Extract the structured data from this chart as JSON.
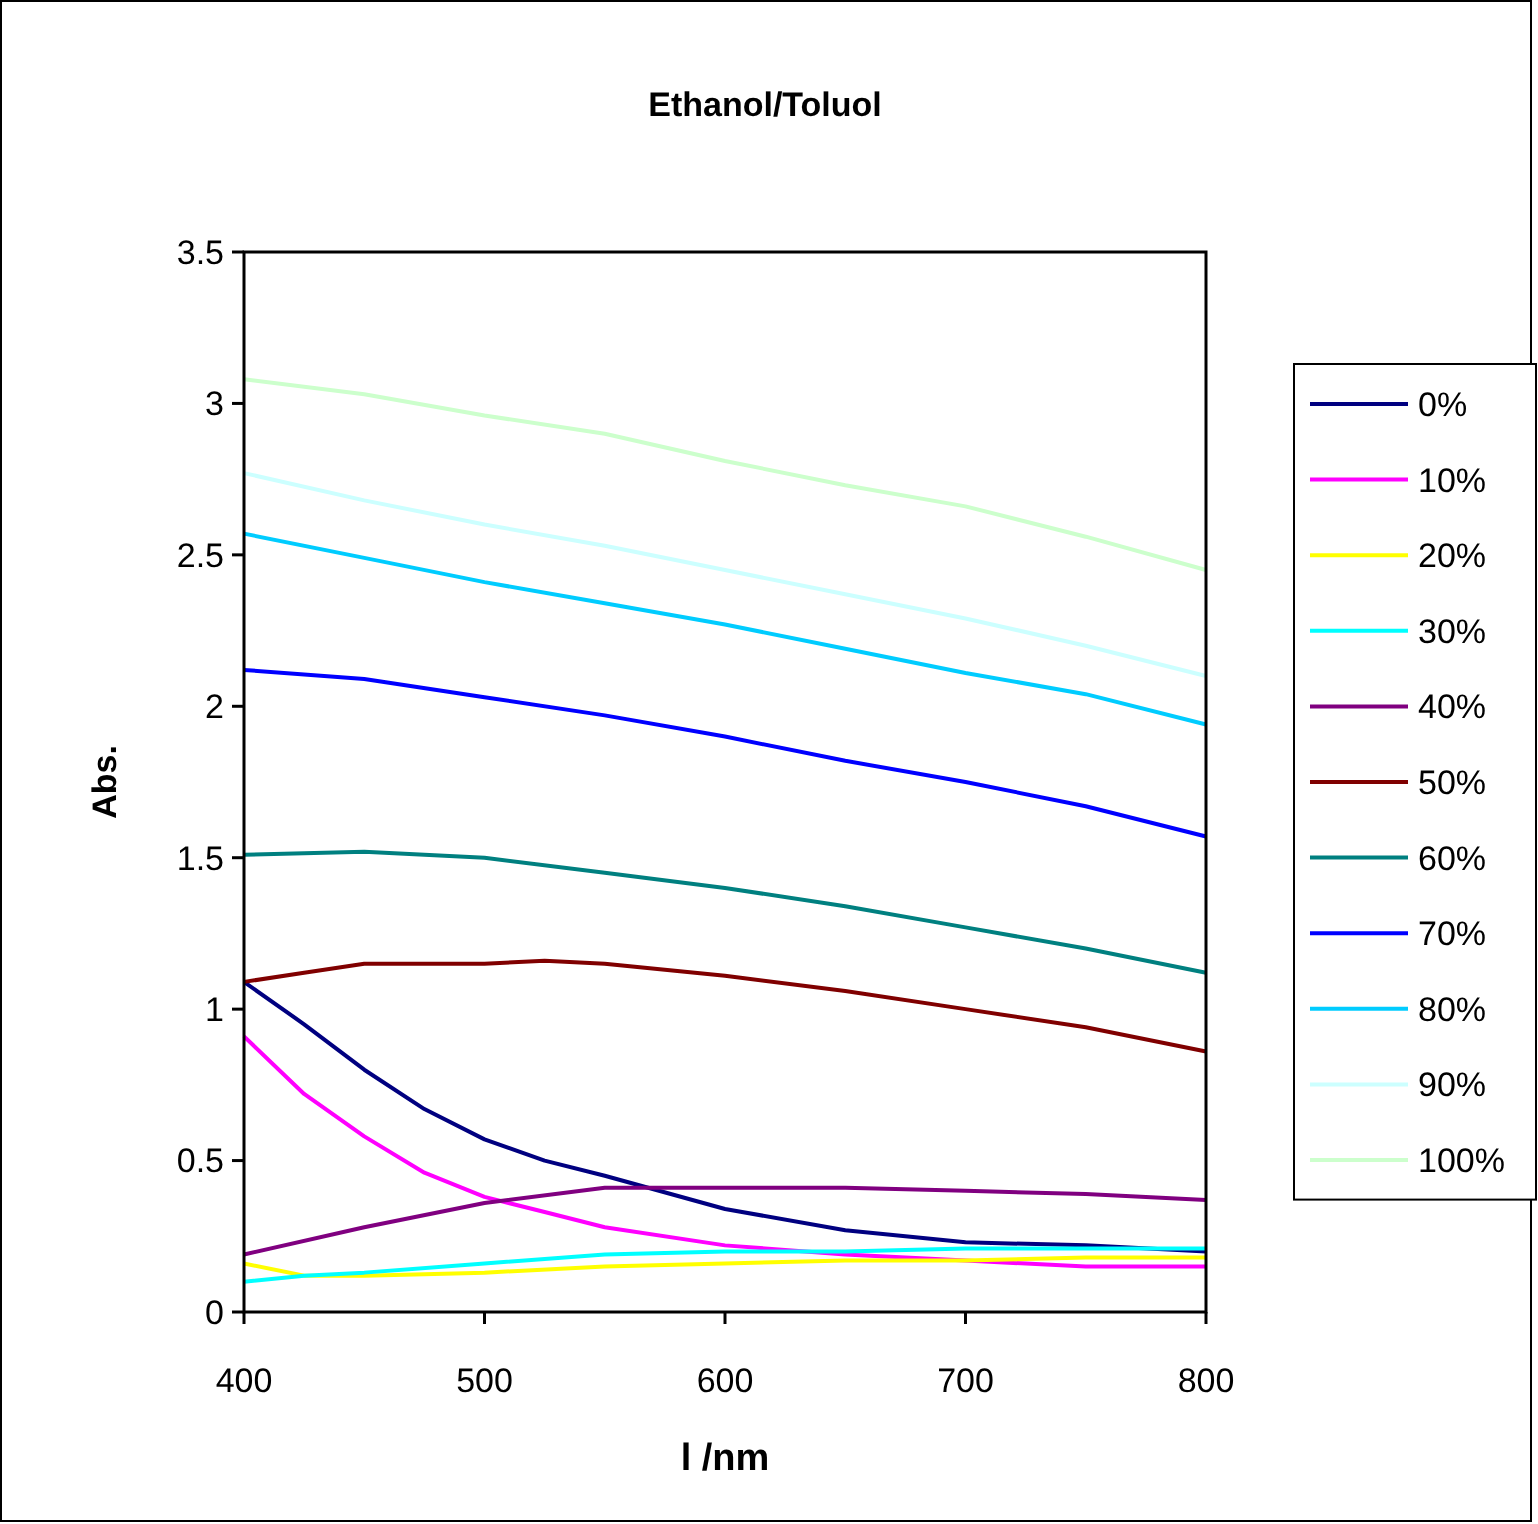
{
  "chart_data": {
    "type": "line",
    "title": "Ethanol/Toluol",
    "xlabel": "l /nm",
    "ylabel": "Abs.",
    "xlim": [
      400,
      800
    ],
    "xticks": [
      400,
      500,
      600,
      700,
      800
    ],
    "ylim": [
      0,
      3.5
    ],
    "yticks": [
      0,
      0.5,
      1,
      1.5,
      2,
      2.5,
      3,
      3.5
    ],
    "grid": false,
    "legend": "right",
    "marker": "none",
    "line_style": "solid",
    "series": [
      {
        "name": "0%",
        "color": "#000080",
        "x": [
          400,
          425,
          450,
          475,
          500,
          525,
          550,
          600,
          650,
          700,
          750,
          800
        ],
        "values": [
          1.09,
          0.95,
          0.8,
          0.67,
          0.57,
          0.5,
          0.45,
          0.34,
          0.27,
          0.23,
          0.22,
          0.2
        ]
      },
      {
        "name": "10%",
        "color": "#ff00ff",
        "x": [
          400,
          425,
          450,
          475,
          500,
          525,
          550,
          600,
          650,
          700,
          750,
          800
        ],
        "values": [
          0.91,
          0.72,
          0.58,
          0.46,
          0.38,
          0.33,
          0.28,
          0.22,
          0.19,
          0.17,
          0.15,
          0.15
        ]
      },
      {
        "name": "20%",
        "color": "#ffff00",
        "x": [
          400,
          425,
          450,
          500,
          550,
          600,
          650,
          700,
          750,
          800
        ],
        "values": [
          0.16,
          0.12,
          0.12,
          0.13,
          0.15,
          0.16,
          0.17,
          0.17,
          0.18,
          0.18
        ]
      },
      {
        "name": "30%",
        "color": "#00ffff",
        "x": [
          400,
          425,
          450,
          500,
          550,
          600,
          650,
          700,
          750,
          800
        ],
        "values": [
          0.1,
          0.12,
          0.13,
          0.16,
          0.19,
          0.2,
          0.2,
          0.21,
          0.21,
          0.21
        ]
      },
      {
        "name": "40%",
        "color": "#800080",
        "x": [
          400,
          450,
          500,
          550,
          600,
          650,
          700,
          750,
          800
        ],
        "values": [
          0.19,
          0.28,
          0.36,
          0.41,
          0.41,
          0.41,
          0.4,
          0.39,
          0.37
        ]
      },
      {
        "name": "50%",
        "color": "#800000",
        "x": [
          400,
          425,
          450,
          500,
          525,
          550,
          600,
          650,
          700,
          750,
          800
        ],
        "values": [
          1.09,
          1.12,
          1.15,
          1.15,
          1.16,
          1.15,
          1.11,
          1.06,
          1.0,
          0.94,
          0.86
        ]
      },
      {
        "name": "60%",
        "color": "#008080",
        "x": [
          400,
          450,
          500,
          550,
          600,
          650,
          700,
          750,
          800
        ],
        "values": [
          1.51,
          1.52,
          1.5,
          1.45,
          1.4,
          1.34,
          1.27,
          1.2,
          1.12
        ]
      },
      {
        "name": "70%",
        "color": "#0000ff",
        "x": [
          400,
          450,
          500,
          550,
          600,
          650,
          700,
          750,
          800
        ],
        "values": [
          2.12,
          2.09,
          2.03,
          1.97,
          1.9,
          1.82,
          1.75,
          1.67,
          1.57
        ]
      },
      {
        "name": "80%",
        "color": "#00ccff",
        "x": [
          400,
          450,
          500,
          550,
          600,
          650,
          700,
          750,
          800
        ],
        "values": [
          2.57,
          2.49,
          2.41,
          2.34,
          2.27,
          2.19,
          2.11,
          2.04,
          1.94
        ]
      },
      {
        "name": "90%",
        "color": "#ccffff",
        "x": [
          400,
          450,
          500,
          550,
          600,
          650,
          700,
          750,
          800
        ],
        "values": [
          2.77,
          2.68,
          2.6,
          2.53,
          2.45,
          2.37,
          2.29,
          2.2,
          2.1
        ]
      },
      {
        "name": "100%",
        "color": "#ccffcc",
        "x": [
          400,
          450,
          500,
          550,
          600,
          650,
          700,
          750,
          800
        ],
        "values": [
          3.08,
          3.03,
          2.96,
          2.9,
          2.81,
          2.73,
          2.66,
          2.56,
          2.45
        ]
      }
    ]
  }
}
